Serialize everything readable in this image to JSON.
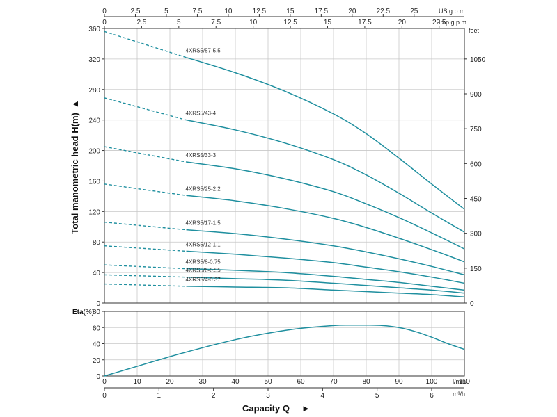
{
  "chart_data": [
    {
      "type": "line",
      "title": "",
      "ylabel": "Total manometric head H(m)",
      "ylabel_arrow": "▲",
      "xlabel": "Capacity Q",
      "xlabel_arrow": "►",
      "x_units": {
        "lpm": "l/min",
        "m3h": "m³/h",
        "usgpm": "US g.p.m",
        "impgpm": "Imp g.p.m"
      },
      "y_units": {
        "meters": "",
        "feet": "feet"
      },
      "xlim": [
        0,
        110
      ],
      "ylim": [
        0,
        360
      ],
      "x_ticks_lpm": [
        0,
        10,
        20,
        30,
        40,
        50,
        60,
        70,
        80,
        90,
        100,
        110
      ],
      "x_ticks_m3h": [
        0,
        1,
        2,
        3,
        4,
        5,
        6
      ],
      "x_ticks_usgpm": [
        "0",
        "2.5",
        "5",
        "7.5",
        "10",
        "12.5",
        "15",
        "17.5",
        "20",
        "22.5",
        "25"
      ],
      "x_ticks_impgpm": [
        "0",
        "2.5",
        "5",
        "7.5",
        "10",
        "12.5",
        "15",
        "17.5",
        "20",
        "22.5"
      ],
      "y_ticks": [
        0,
        40,
        80,
        120,
        160,
        200,
        240,
        280,
        320,
        360
      ],
      "y_ticks_feet": [
        0,
        150,
        300,
        450,
        600,
        750,
        900,
        1050
      ],
      "dashed_until_x": 25,
      "series": [
        {
          "name": "4XRS5/57-5.5",
          "x": [
            0,
            25,
            40,
            55,
            70,
            80,
            90,
            100,
            110
          ],
          "y": [
            356,
            322,
            302,
            278,
            248,
            222,
            190,
            156,
            123
          ]
        },
        {
          "name": "4XRS5/43-4",
          "x": [
            0,
            25,
            40,
            55,
            70,
            80,
            90,
            100,
            110
          ],
          "y": [
            269,
            240,
            227,
            210,
            188,
            168,
            144,
            118,
            93
          ]
        },
        {
          "name": "4XRS5/33-3",
          "x": [
            0,
            25,
            40,
            55,
            70,
            80,
            90,
            100,
            110
          ],
          "y": [
            205,
            185,
            176,
            163,
            146,
            130,
            112,
            92,
            71
          ]
        },
        {
          "name": "4XRS5/25-2.2",
          "x": [
            0,
            25,
            40,
            55,
            70,
            80,
            90,
            100,
            110
          ],
          "y": [
            156,
            141,
            134,
            124,
            111,
            99,
            85,
            70,
            54
          ]
        },
        {
          "name": "4XRS5/17-1.5",
          "x": [
            0,
            25,
            40,
            55,
            70,
            80,
            90,
            100,
            110
          ],
          "y": [
            106,
            96,
            91,
            84,
            75,
            67,
            58,
            48,
            37
          ]
        },
        {
          "name": "4XRS5/12-1.1",
          "x": [
            0,
            25,
            40,
            55,
            70,
            80,
            90,
            100,
            110
          ],
          "y": [
            75,
            68,
            64,
            59,
            53,
            47,
            41,
            34,
            26
          ]
        },
        {
          "name": "4XRS5/8-0.75",
          "x": [
            0,
            25,
            40,
            55,
            70,
            80,
            90,
            100,
            110
          ],
          "y": [
            50,
            45,
            43,
            40,
            35,
            31,
            27,
            22,
            17
          ]
        },
        {
          "name": "4XRS5/6-0.55",
          "x": [
            0,
            25,
            40,
            55,
            70,
            80,
            90,
            100,
            110
          ],
          "y": [
            37,
            34,
            32,
            30,
            26,
            23,
            20,
            17,
            13
          ]
        },
        {
          "name": "4XRS5/4-0.37",
          "x": [
            0,
            25,
            40,
            55,
            70,
            80,
            90,
            100,
            110
          ],
          "y": [
            25,
            22,
            21,
            20,
            17,
            15,
            13,
            11,
            8
          ]
        }
      ]
    },
    {
      "type": "line",
      "title": "",
      "ylabel": "Eta",
      "ylabel_unit": "(%)",
      "xlim": [
        0,
        110
      ],
      "ylim": [
        0,
        80
      ],
      "y_ticks": [
        0,
        20,
        40,
        60,
        80
      ],
      "series": [
        {
          "name": "Eta",
          "x": [
            0,
            10,
            20,
            30,
            40,
            50,
            60,
            70,
            75,
            80,
            85,
            90,
            95,
            100,
            105,
            110
          ],
          "y": [
            0,
            12,
            24,
            35,
            45,
            53,
            59,
            62.5,
            63,
            63,
            62.5,
            60,
            55,
            48,
            40,
            33
          ]
        }
      ]
    }
  ]
}
